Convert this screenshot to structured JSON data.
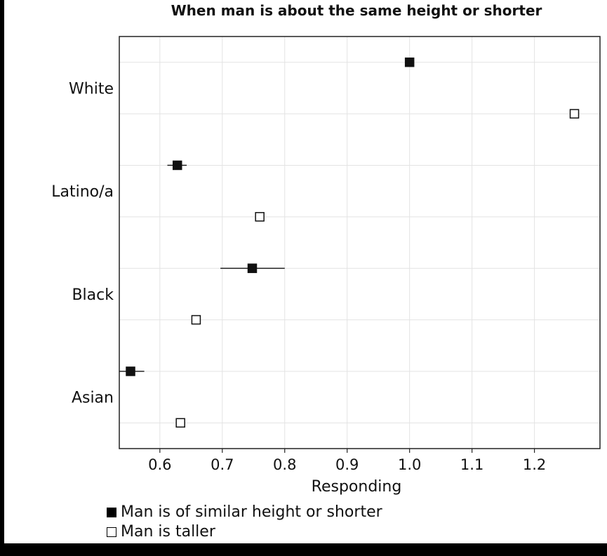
{
  "chart_data": {
    "type": "scatter",
    "title": "When man is about the same height or shorter",
    "xlabel": "Responding",
    "ylabel": "",
    "xlim": [
      0.535,
      1.305
    ],
    "xticks": [
      0.6,
      0.7,
      0.8,
      0.9,
      1.0,
      1.1,
      1.2
    ],
    "xtick_labels": [
      "0.6",
      "0.7",
      "0.8",
      "0.9",
      "1.0",
      "1.1",
      "1.2"
    ],
    "grid": true,
    "legend_position": "bottom-left",
    "categories": [
      "White",
      "Latino/a",
      "Black",
      "Asian"
    ],
    "series": [
      {
        "name": "Man is of similar height or shorter",
        "marker": "filled-square",
        "color": "#000000",
        "values": [
          1.0,
          0.628,
          0.748,
          0.553
        ],
        "error_low": [
          1.0,
          0.612,
          0.697,
          0.535
        ],
        "error_high": [
          1.0,
          0.643,
          0.8,
          0.575
        ]
      },
      {
        "name": "Man is taller",
        "marker": "open-square",
        "color": "#000000",
        "values": [
          1.264,
          0.76,
          0.658,
          0.633
        ],
        "error_low": [
          1.264,
          0.76,
          0.658,
          0.633
        ],
        "error_high": [
          1.264,
          0.76,
          0.658,
          0.633
        ]
      }
    ]
  },
  "legend": {
    "filled_label": "Man is of similar height or shorter",
    "open_label": "Man is taller"
  }
}
